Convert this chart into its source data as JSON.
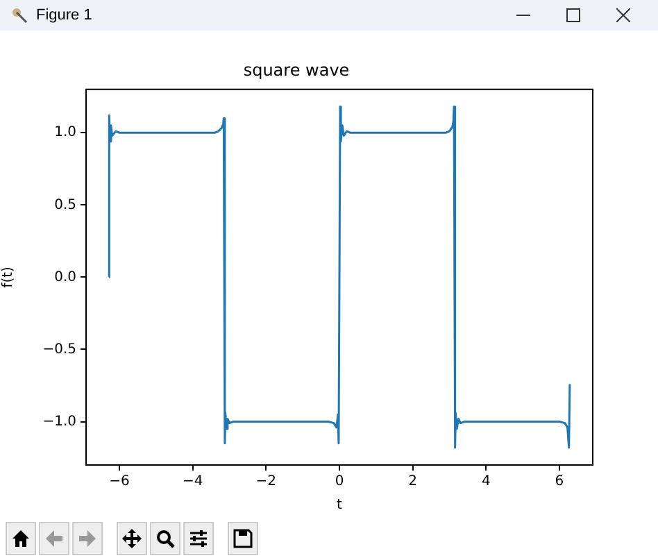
{
  "chart_data": {
    "type": "line",
    "title": "square wave",
    "xlabel": "t",
    "ylabel": "f(t)",
    "annotations": [
      "Figure 1"
    ],
    "xlim": [
      -6.91,
      6.91
    ],
    "xticks": [
      {
        "value": -6,
        "label": "−6"
      },
      {
        "value": -4,
        "label": "−4"
      },
      {
        "value": -2,
        "label": "−2"
      },
      0,
      2,
      4,
      6
    ],
    "ylim": [
      -1.3,
      1.3
    ],
    "yticks": [
      {
        "value": -1,
        "label": "−1.0"
      },
      {
        "value": -0.5,
        "label": "−0.5"
      },
      {
        "value": 0,
        "label": "0.0"
      },
      {
        "value": 0.5,
        "label": "0.5"
      },
      {
        "value": 1,
        "label": "1.0"
      }
    ],
    "grid": false,
    "legend": false,
    "marker": "none",
    "line_style": "solid",
    "series": [
      {
        "color": "#1f77b4",
        "x": [
          -6.283,
          -6.28,
          -6.26,
          -6.23,
          -6.2,
          -6.1,
          -6.0,
          -5,
          -4,
          -3.4,
          -3.3,
          -3.22,
          -3.17,
          -3.155,
          -3.125,
          -3.11,
          -3.08,
          -3.05,
          -3.0,
          -2.9,
          -2.8,
          -2,
          -1,
          -0.3,
          -0.15,
          -0.08,
          -0.04,
          -0.02,
          0,
          0.02,
          0.04,
          0.08,
          0.12,
          0.2,
          0.3,
          1,
          2,
          2.9,
          3.0,
          3.08,
          3.11,
          3.125,
          3.155,
          3.17,
          3.2,
          3.25,
          3.3,
          3.4,
          4,
          5,
          6.0,
          6.15,
          6.22,
          6.26,
          6.283
        ],
        "values": [
          0,
          1.12,
          0.94,
          1.05,
          0.98,
          1.01,
          1.0,
          1.0,
          1.0,
          1.0,
          1.01,
          1.03,
          1.06,
          1.1,
          -1.15,
          -0.94,
          -1.05,
          -0.98,
          -1.01,
          -1.0,
          -1.0,
          -1.0,
          -1.0,
          -1.0,
          -1.01,
          -1.04,
          -0.95,
          -1.15,
          0,
          1.18,
          0.94,
          1.05,
          0.98,
          1.01,
          1.0,
          1.0,
          1.0,
          1.0,
          1.01,
          1.04,
          1.08,
          1.18,
          -1.18,
          -0.94,
          -1.05,
          -0.98,
          -1.01,
          -1.0,
          -1.0,
          -1.0,
          -1.0,
          -1.01,
          -1.04,
          -1.18,
          -0.74
        ]
      }
    ]
  }
}
